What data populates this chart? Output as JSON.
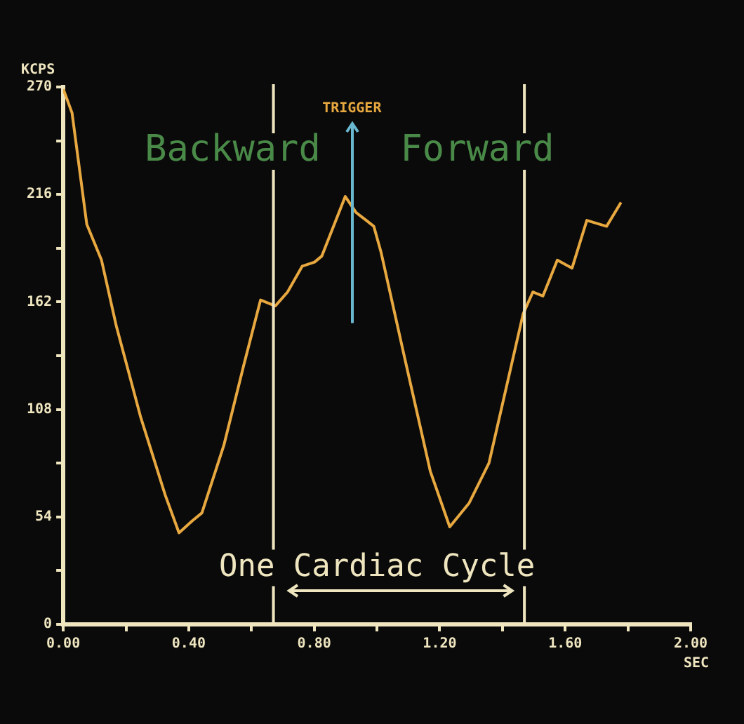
{
  "chart_data": {
    "type": "line",
    "xlabel": "SEC",
    "ylabel": "KCPS",
    "x": [
      0,
      0.028,
      0.075,
      0.122,
      0.169,
      0.247,
      0.325,
      0.369,
      0.411,
      0.442,
      0.512,
      0.575,
      0.629,
      0.676,
      0.715,
      0.762,
      0.801,
      0.824,
      0.899,
      0.933,
      0.966,
      0.99,
      1.013,
      1.091,
      1.17,
      1.232,
      1.294,
      1.357,
      1.466,
      1.497,
      1.529,
      1.575,
      1.622,
      1.669,
      1.732,
      1.778
    ],
    "series": [
      {
        "color": "#e8a840",
        "values": [
          269,
          257,
          201,
          183,
          150,
          104,
          65,
          46,
          52,
          56,
          90,
          130,
          163,
          160,
          167,
          180,
          182,
          185,
          215,
          207,
          203,
          200,
          187,
          132,
          77,
          49,
          61,
          81,
          156,
          167,
          165,
          183,
          179,
          203,
          200,
          212
        ]
      }
    ],
    "xlim": [
      0,
      2
    ],
    "ylim": [
      0,
      270
    ],
    "xticks": [
      {
        "value": 0,
        "label": "0.00"
      },
      {
        "value": 0.2,
        "label": null
      },
      {
        "value": 0.4,
        "label": "0.40"
      },
      {
        "value": 0.6,
        "label": null
      },
      {
        "value": 0.8,
        "label": "0.80"
      },
      {
        "value": 1.0,
        "label": null
      },
      {
        "value": 1.2,
        "label": "1.20"
      },
      {
        "value": 1.4,
        "label": null
      },
      {
        "value": 1.6,
        "label": "1.60"
      },
      {
        "value": 1.8,
        "label": null
      },
      {
        "value": 2,
        "label": "2.00"
      }
    ],
    "yticks": [
      0,
      {
        "value": 27,
        "label": null
      },
      54,
      {
        "value": 81,
        "label": null
      },
      108,
      {
        "value": 135,
        "label": null
      },
      162,
      {
        "value": 189,
        "label": null
      },
      216,
      {
        "value": 243,
        "label": null
      },
      270
    ],
    "ref_lines": [
      {
        "axis": "x",
        "value": 0.67,
        "color": "#efe6c0"
      },
      {
        "axis": "x",
        "value": 1.47,
        "color": "#efe6c0"
      }
    ],
    "annotations": [
      "TRIGGER",
      "Backward",
      "Forward",
      "One Cardiac Cycle"
    ]
  }
}
